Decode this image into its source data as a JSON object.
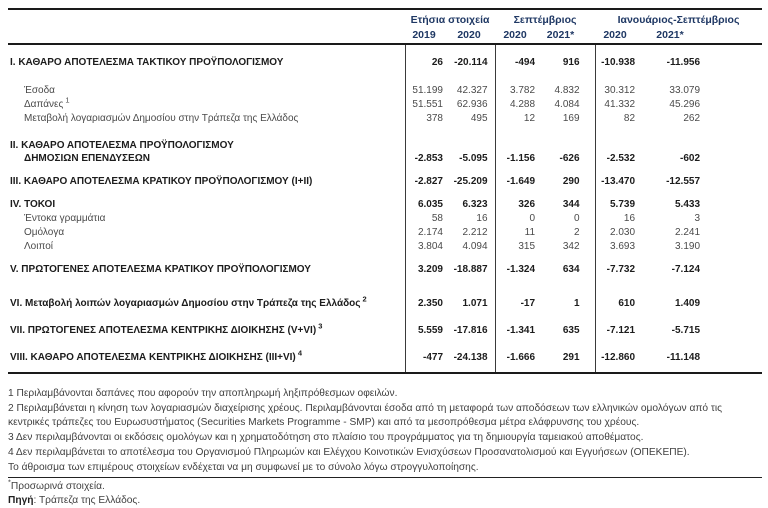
{
  "colors": {
    "header_blue": "#1f3864",
    "text_dark": "#1c1c1c",
    "text_gray": "#4a4a4a",
    "rule_black": "#1a1a1a"
  },
  "table": {
    "column_groups": [
      {
        "label": "Ετήσια στοιχεία",
        "years": [
          "2019",
          "2020"
        ]
      },
      {
        "label": "Σεπτέμβριος",
        "years": [
          "2020",
          "2021*"
        ]
      },
      {
        "label": "Ιανουάριος-Σεπτέμβριος",
        "years": [
          "2020",
          "2021*"
        ]
      }
    ],
    "rows": [
      {
        "label": "I. ΚΑΘΑΡΟ ΑΠΟΤΕΛΕΣΜΑ  ΤΑΚΤΙΚΟΥ ΠΡΟΫΠΟΛΟΓΙΣΜΟΥ",
        "type": "major",
        "values": [
          "26",
          "-20.114",
          "-494",
          "916",
          "-10.938",
          "-11.956"
        ]
      },
      {
        "label": "Έσοδα",
        "type": "sub",
        "values": [
          "51.199",
          "42.327",
          "3.782",
          "4.832",
          "30.312",
          "33.079"
        ]
      },
      {
        "label": "Δαπάνες",
        "sup": "1",
        "type": "sub",
        "values": [
          "51.551",
          "62.936",
          "4.288",
          "4.084",
          "41.332",
          "45.296"
        ]
      },
      {
        "label": "Μεταβολή λογαριασμών Δημοσίου στην Τράπεζα της Ελλάδος",
        "type": "sub",
        "values": [
          "378",
          "495",
          "12",
          "169",
          "82",
          "262"
        ]
      },
      {
        "label": "II. ΚΑΘΑΡΟ ΑΠΟΤΕΛΕΣΜΑ ΠΡΟΫΠΟΛΟΓΙΣΜΟΥ",
        "label2": "ΔΗΜΟΣΙΩΝ ΕΠΕΝΔΥΣΕΩΝ",
        "type": "major",
        "values": [
          "-2.853",
          "-5.095",
          "-1.156",
          "-626",
          "-2.532",
          "-602"
        ]
      },
      {
        "label": "III. ΚΑΘΑΡΟ ΑΠΟΤΕΛΕΣΜΑ ΚΡΑΤΙΚΟΥ ΠΡΟΫΠΟΛΟΓΙΣΜΟΥ (I+II)",
        "type": "major",
        "values": [
          "-2.827",
          "-25.209",
          "-1.649",
          "290",
          "-13.470",
          "-12.557"
        ]
      },
      {
        "label": "IV. ΤΟΚΟΙ",
        "type": "major",
        "values": [
          "6.035",
          "6.323",
          "326",
          "344",
          "5.739",
          "5.433"
        ]
      },
      {
        "label": "Έντοκα γραμμάτια",
        "type": "sub",
        "values": [
          "58",
          "16",
          "0",
          "0",
          "16",
          "3"
        ]
      },
      {
        "label": "Ομόλογα",
        "type": "sub",
        "values": [
          "2.174",
          "2.212",
          "11",
          "2",
          "2.030",
          "2.241"
        ]
      },
      {
        "label": "Λοιποί",
        "type": "sub",
        "values": [
          "3.804",
          "4.094",
          "315",
          "342",
          "3.693",
          "3.190"
        ]
      },
      {
        "label": "V. ΠΡΩΤΟΓΕΝΕΣ ΑΠΟΤΕΛΕΣΜΑ  ΚΡΑΤΙΚΟΥ ΠΡΟΫΠΟΛΟΓΙΣΜΟΥ",
        "type": "major",
        "values": [
          "3.209",
          "-18.887",
          "-1.324",
          "634",
          "-7.732",
          "-7.124"
        ]
      },
      {
        "label": "VI. Μεταβολή λοιπών λογαριασμών Δημοσίου στην Τράπεζα της Ελλάδος",
        "sup": "2",
        "type": "major",
        "values": [
          "2.350",
          "1.071",
          "-17",
          "1",
          "610",
          "1.409"
        ]
      },
      {
        "label": "VII. ΠΡΩΤΟΓΕΝΕΣ ΑΠΟΤΕΛΕΣΜΑ ΚΕΝΤΡΙΚΗΣ ΔΙΟΙΚΗΣΗΣ (V+VI)",
        "sup": "3",
        "type": "major",
        "values": [
          "5.559",
          "-17.816",
          "-1.341",
          "635",
          "-7.121",
          "-5.715"
        ]
      },
      {
        "label": "VIII. ΚΑΘΑΡΟ ΑΠΟΤΕΛΕΣΜΑ ΚΕΝΤΡΙΚΗΣ ΔΙΟΙΚΗΣΗΣ (III+VI)",
        "sup": "4",
        "type": "major",
        "values": [
          "-477",
          "-24.138",
          "-1.666",
          "291",
          "-12.860",
          "-11.148"
        ]
      }
    ]
  },
  "footnotes": [
    "1 Περιλαμβάνονται δαπάνες που αφορούν την αποπληρωμή ληξιπρόθεσμων οφειλών.",
    "2 Περιλαμβάνεται η κίνηση των λογαριασμών διαχείρισης χρέους. Περιλαμβάνονται έσοδα από τη μεταφορά των αποδόσεων των ελληνικών ομολόγων από τις κεντρικές τράπεζες του Ευρωσυστήματος (Securities Markets Programme - SMP) και από τα μεσοπρόθεσμα μέτρα ελάφρυνσης του χρέους.",
    "3 Δεν περιλαμβάνονται οι εκδόσεις ομολόγων και η χρηματοδότηση στο πλαίσιο του προγράμματος για τη δημιουργία ταμειακού αποθέματος.",
    "4 Δεν περιλαμβάνεται το αποτέλεσμα του Οργανισμού Πληρωμών και Ελέγχου Κοινοτικών Ενισχύσεων Προσανατολισμού και Εγγυήσεων (ΟΠΕΚΕΠΕ).",
    "Το άθροισμα των επιμέρους στοιχείων ενδέχεται να μη συμφωνεί με το σύνολο λόγω στρογγυλοποίησης."
  ],
  "bottom": {
    "star": "*",
    "provisional": "Προσωρινά στοιχεία.",
    "source_label": "Πηγή",
    "source_rest": ": Τράπεζα της Ελλάδος."
  }
}
